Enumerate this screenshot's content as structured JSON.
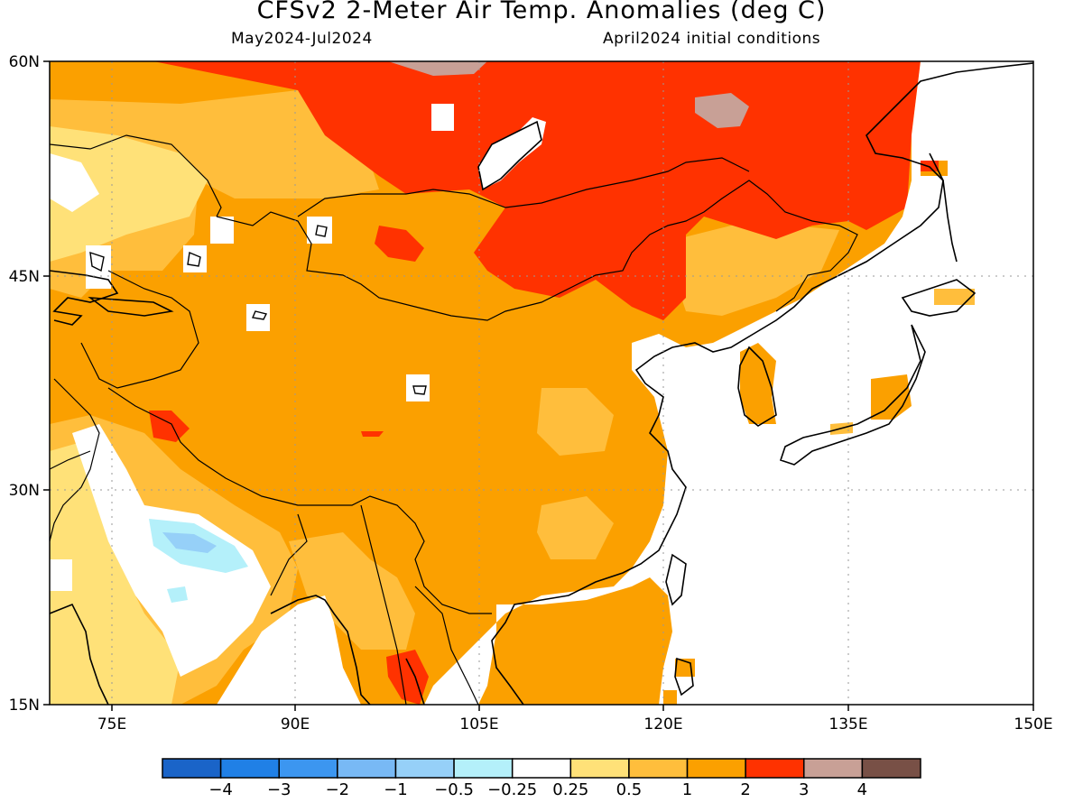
{
  "header": {
    "title": "CFSv2 2-Meter Air Temp. Anomalies (deg C)",
    "period": "May2024-Jul2024",
    "init": "April2024 initial conditions"
  },
  "axes": {
    "lon_ticks": [
      "75E",
      "90E",
      "105E",
      "120E",
      "135E",
      "150E"
    ],
    "lat_ticks": [
      "60N",
      "45N",
      "30N",
      "15N"
    ]
  },
  "colorbar": {
    "colors": [
      "#1a64c8",
      "#2080e6",
      "#3c96f0",
      "#78b9f5",
      "#96d0f8",
      "#b4f0fa",
      "#ffffff",
      "#ffe178",
      "#ffbe3c",
      "#fba000",
      "#ff3200",
      "#c8a096",
      "#785046"
    ],
    "labels": [
      "-4",
      "-3",
      "-2",
      "-1",
      "-0.5",
      "-0.25",
      "0.25",
      "0.5",
      "1",
      "2",
      "3",
      "4"
    ]
  }
}
